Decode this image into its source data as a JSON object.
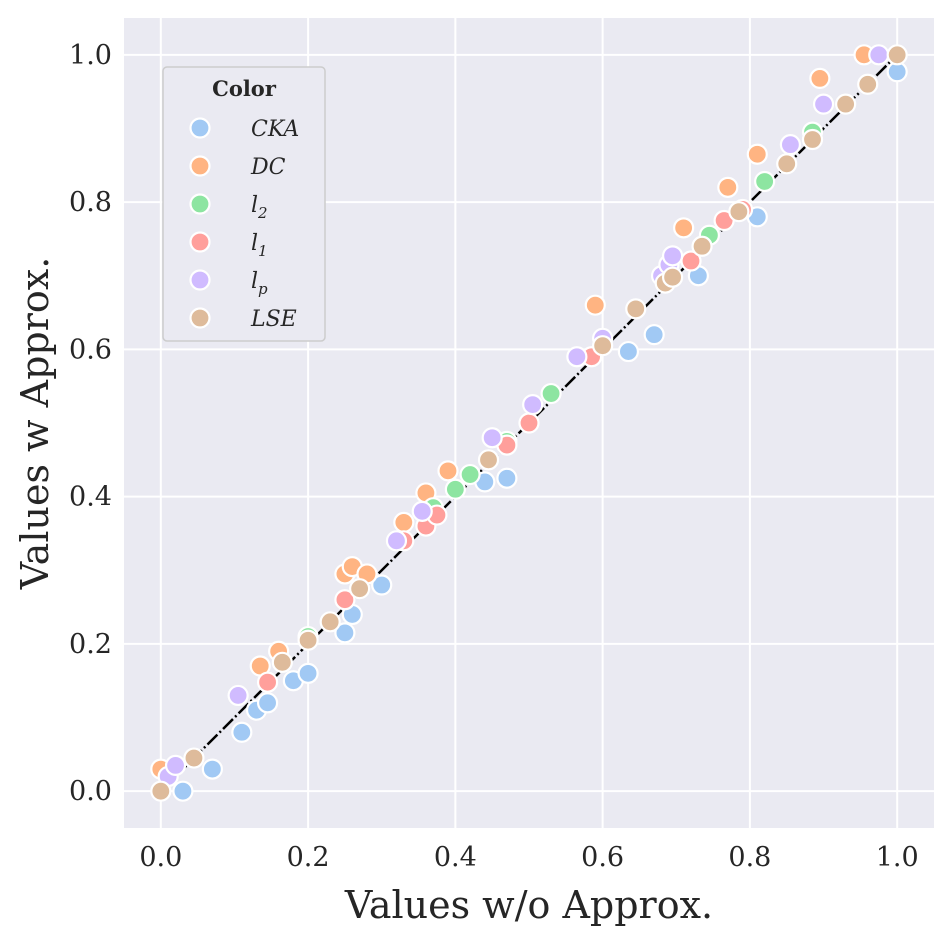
{
  "chart_data": {
    "type": "scatter",
    "title": "",
    "xlabel": "Values w/o Approx.",
    "ylabel": "Values w Approx.",
    "xlim": [
      -0.05,
      1.05
    ],
    "ylim": [
      -0.05,
      1.05
    ],
    "xticks": [
      "0.0",
      "0.2",
      "0.4",
      "0.6",
      "0.8",
      "1.0"
    ],
    "yticks": [
      "0.0",
      "0.2",
      "0.4",
      "0.6",
      "0.8",
      "1.0"
    ],
    "xtick_values": [
      0.0,
      0.2,
      0.4,
      0.6,
      0.8,
      1.0
    ],
    "ytick_values": [
      0.0,
      0.2,
      0.4,
      0.6,
      0.8,
      1.0
    ],
    "grid": true,
    "legend": {
      "title": "Color",
      "placement": "top-left"
    },
    "reference_line": {
      "style": "dash-dot",
      "color": "#000000",
      "from": [
        0,
        0
      ],
      "to": [
        1,
        1
      ]
    },
    "series": [
      {
        "name": "CKA",
        "color": "#a1c9f4",
        "points": [
          [
            0.03,
            0.0
          ],
          [
            0.07,
            0.03
          ],
          [
            0.11,
            0.08
          ],
          [
            0.13,
            0.11
          ],
          [
            0.145,
            0.12
          ],
          [
            0.18,
            0.15
          ],
          [
            0.2,
            0.16
          ],
          [
            0.25,
            0.215
          ],
          [
            0.26,
            0.24
          ],
          [
            0.3,
            0.28
          ],
          [
            0.44,
            0.42
          ],
          [
            0.47,
            0.425
          ],
          [
            0.635,
            0.597
          ],
          [
            0.67,
            0.62
          ],
          [
            0.73,
            0.7
          ],
          [
            0.81,
            0.78
          ],
          [
            1.0,
            0.977
          ]
        ]
      },
      {
        "name": "DC",
        "color": "#ffb482",
        "points": [
          [
            0.0,
            0.03
          ],
          [
            0.135,
            0.17
          ],
          [
            0.16,
            0.19
          ],
          [
            0.25,
            0.295
          ],
          [
            0.26,
            0.305
          ],
          [
            0.28,
            0.295
          ],
          [
            0.33,
            0.365
          ],
          [
            0.36,
            0.405
          ],
          [
            0.39,
            0.435
          ],
          [
            0.59,
            0.66
          ],
          [
            0.71,
            0.765
          ],
          [
            0.77,
            0.82
          ],
          [
            0.81,
            0.865
          ],
          [
            0.895,
            0.968
          ],
          [
            0.955,
            1.0
          ]
        ]
      },
      {
        "name": "l2",
        "color": "#8de5a1",
        "points": [
          [
            0.2,
            0.21
          ],
          [
            0.37,
            0.385
          ],
          [
            0.4,
            0.41
          ],
          [
            0.42,
            0.43
          ],
          [
            0.47,
            0.475
          ],
          [
            0.53,
            0.54
          ],
          [
            0.745,
            0.755
          ],
          [
            0.82,
            0.828
          ],
          [
            0.885,
            0.895
          ]
        ]
      },
      {
        "name": "l1",
        "color": "#ff9f9b",
        "points": [
          [
            0.145,
            0.148
          ],
          [
            0.25,
            0.26
          ],
          [
            0.33,
            0.34
          ],
          [
            0.36,
            0.36
          ],
          [
            0.375,
            0.375
          ],
          [
            0.47,
            0.47
          ],
          [
            0.5,
            0.5
          ],
          [
            0.585,
            0.59
          ],
          [
            0.72,
            0.72
          ],
          [
            0.765,
            0.775
          ],
          [
            0.79,
            0.79
          ]
        ]
      },
      {
        "name": "lp",
        "color": "#d0bbff",
        "points": [
          [
            0.01,
            0.02
          ],
          [
            0.02,
            0.035
          ],
          [
            0.105,
            0.13
          ],
          [
            0.32,
            0.34
          ],
          [
            0.355,
            0.38
          ],
          [
            0.45,
            0.48
          ],
          [
            0.505,
            0.525
          ],
          [
            0.565,
            0.59
          ],
          [
            0.6,
            0.615
          ],
          [
            0.68,
            0.7
          ],
          [
            0.69,
            0.715
          ],
          [
            0.695,
            0.727
          ],
          [
            0.855,
            0.878
          ],
          [
            0.9,
            0.933
          ],
          [
            0.975,
            1.0
          ]
        ]
      },
      {
        "name": "LSE",
        "color": "#debb9b",
        "points": [
          [
            0.0,
            0.0
          ],
          [
            0.045,
            0.045
          ],
          [
            0.165,
            0.175
          ],
          [
            0.2,
            0.205
          ],
          [
            0.23,
            0.23
          ],
          [
            0.27,
            0.275
          ],
          [
            0.445,
            0.45
          ],
          [
            0.6,
            0.605
          ],
          [
            0.645,
            0.655
          ],
          [
            0.685,
            0.69
          ],
          [
            0.695,
            0.698
          ],
          [
            0.735,
            0.74
          ],
          [
            0.785,
            0.787
          ],
          [
            0.85,
            0.852
          ],
          [
            0.885,
            0.885
          ],
          [
            0.93,
            0.933
          ],
          [
            0.96,
            0.96
          ],
          [
            1.0,
            1.0
          ]
        ]
      }
    ],
    "legend_entries": [
      {
        "key": "CKA",
        "base": "CKA",
        "sub": ""
      },
      {
        "key": "DC",
        "base": "DC",
        "sub": ""
      },
      {
        "key": "l2",
        "base": "l",
        "sub": "2"
      },
      {
        "key": "l1",
        "base": "l",
        "sub": "1"
      },
      {
        "key": "lp",
        "base": "l",
        "sub": "p"
      },
      {
        "key": "LSE",
        "base": "LSE",
        "sub": ""
      }
    ]
  }
}
